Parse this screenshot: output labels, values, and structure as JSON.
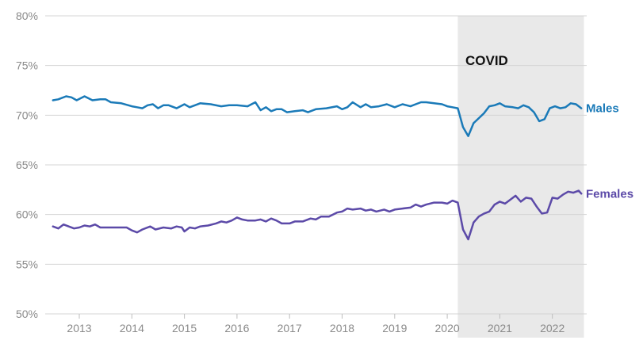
{
  "chart_data": {
    "type": "line",
    "title": "",
    "xlabel": "",
    "ylabel": "",
    "x_unit": "year (decimal)",
    "ylim": [
      50,
      80
    ],
    "xlim": [
      2012.5,
      2022.6
    ],
    "y_ticks": [
      50,
      55,
      60,
      65,
      70,
      75,
      80
    ],
    "y_tick_labels": [
      "50%",
      "55%",
      "60%",
      "65%",
      "70%",
      "75%",
      "80%"
    ],
    "x_ticks": [
      2013,
      2014,
      2015,
      2016,
      2017,
      2018,
      2019,
      2020,
      2021,
      2022
    ],
    "x_tick_labels": [
      "2013",
      "2014",
      "2015",
      "2016",
      "2017",
      "2018",
      "2019",
      "2020",
      "2021",
      "2022"
    ],
    "grid": "horizontal",
    "legend": "inline labels at right end of lines",
    "shaded_region": {
      "label": "COVID",
      "x_start": 2020.2,
      "x_end": 2022.6,
      "color": "#e9e9e9"
    },
    "series": [
      {
        "name": "Males",
        "color": "#1a7ab8",
        "points": [
          [
            2012.5,
            71.5
          ],
          [
            2012.6,
            71.6
          ],
          [
            2012.75,
            71.9
          ],
          [
            2012.85,
            71.8
          ],
          [
            2012.95,
            71.5
          ],
          [
            2013.1,
            71.9
          ],
          [
            2013.25,
            71.5
          ],
          [
            2013.4,
            71.6
          ],
          [
            2013.5,
            71.6
          ],
          [
            2013.6,
            71.3
          ],
          [
            2013.8,
            71.2
          ],
          [
            2014.0,
            70.9
          ],
          [
            2014.1,
            70.8
          ],
          [
            2014.2,
            70.7
          ],
          [
            2014.3,
            71.0
          ],
          [
            2014.4,
            71.1
          ],
          [
            2014.5,
            70.7
          ],
          [
            2014.6,
            71.0
          ],
          [
            2014.7,
            71.0
          ],
          [
            2014.85,
            70.7
          ],
          [
            2015.0,
            71.1
          ],
          [
            2015.1,
            70.8
          ],
          [
            2015.2,
            71.0
          ],
          [
            2015.3,
            71.2
          ],
          [
            2015.5,
            71.1
          ],
          [
            2015.7,
            70.9
          ],
          [
            2015.85,
            71.0
          ],
          [
            2016.0,
            71.0
          ],
          [
            2016.2,
            70.9
          ],
          [
            2016.35,
            71.3
          ],
          [
            2016.45,
            70.5
          ],
          [
            2016.55,
            70.8
          ],
          [
            2016.65,
            70.4
          ],
          [
            2016.75,
            70.6
          ],
          [
            2016.85,
            70.6
          ],
          [
            2016.95,
            70.3
          ],
          [
            2017.1,
            70.4
          ],
          [
            2017.25,
            70.5
          ],
          [
            2017.35,
            70.3
          ],
          [
            2017.5,
            70.6
          ],
          [
            2017.7,
            70.7
          ],
          [
            2017.9,
            70.9
          ],
          [
            2018.0,
            70.6
          ],
          [
            2018.1,
            70.8
          ],
          [
            2018.2,
            71.3
          ],
          [
            2018.35,
            70.8
          ],
          [
            2018.45,
            71.1
          ],
          [
            2018.55,
            70.8
          ],
          [
            2018.7,
            70.9
          ],
          [
            2018.85,
            71.1
          ],
          [
            2019.0,
            70.8
          ],
          [
            2019.15,
            71.1
          ],
          [
            2019.3,
            70.9
          ],
          [
            2019.4,
            71.1
          ],
          [
            2019.5,
            71.3
          ],
          [
            2019.6,
            71.3
          ],
          [
            2019.75,
            71.2
          ],
          [
            2019.9,
            71.1
          ],
          [
            2020.0,
            70.9
          ],
          [
            2020.1,
            70.8
          ],
          [
            2020.2,
            70.7
          ],
          [
            2020.3,
            68.8
          ],
          [
            2020.4,
            67.9
          ],
          [
            2020.5,
            69.2
          ],
          [
            2020.6,
            69.7
          ],
          [
            2020.7,
            70.2
          ],
          [
            2020.8,
            70.9
          ],
          [
            2020.9,
            71.0
          ],
          [
            2021.0,
            71.2
          ],
          [
            2021.1,
            70.9
          ],
          [
            2021.25,
            70.8
          ],
          [
            2021.35,
            70.7
          ],
          [
            2021.45,
            71.0
          ],
          [
            2021.55,
            70.8
          ],
          [
            2021.65,
            70.3
          ],
          [
            2021.75,
            69.4
          ],
          [
            2021.85,
            69.6
          ],
          [
            2021.95,
            70.7
          ],
          [
            2022.05,
            70.9
          ],
          [
            2022.15,
            70.7
          ],
          [
            2022.25,
            70.8
          ],
          [
            2022.35,
            71.2
          ],
          [
            2022.45,
            71.1
          ],
          [
            2022.55,
            70.7
          ]
        ]
      },
      {
        "name": "Females",
        "color": "#5c4aa8",
        "points": [
          [
            2012.5,
            58.8
          ],
          [
            2012.6,
            58.6
          ],
          [
            2012.7,
            59.0
          ],
          [
            2012.8,
            58.8
          ],
          [
            2012.9,
            58.6
          ],
          [
            2013.0,
            58.7
          ],
          [
            2013.1,
            58.9
          ],
          [
            2013.2,
            58.8
          ],
          [
            2013.3,
            59.0
          ],
          [
            2013.4,
            58.7
          ],
          [
            2013.6,
            58.7
          ],
          [
            2013.9,
            58.7
          ],
          [
            2014.0,
            58.4
          ],
          [
            2014.1,
            58.2
          ],
          [
            2014.2,
            58.5
          ],
          [
            2014.35,
            58.8
          ],
          [
            2014.45,
            58.5
          ],
          [
            2014.6,
            58.7
          ],
          [
            2014.75,
            58.6
          ],
          [
            2014.85,
            58.8
          ],
          [
            2014.95,
            58.7
          ],
          [
            2015.0,
            58.3
          ],
          [
            2015.1,
            58.7
          ],
          [
            2015.2,
            58.6
          ],
          [
            2015.3,
            58.8
          ],
          [
            2015.45,
            58.9
          ],
          [
            2015.6,
            59.1
          ],
          [
            2015.7,
            59.3
          ],
          [
            2015.8,
            59.2
          ],
          [
            2015.9,
            59.4
          ],
          [
            2016.0,
            59.7
          ],
          [
            2016.1,
            59.5
          ],
          [
            2016.2,
            59.4
          ],
          [
            2016.35,
            59.4
          ],
          [
            2016.45,
            59.5
          ],
          [
            2016.55,
            59.3
          ],
          [
            2016.65,
            59.6
          ],
          [
            2016.75,
            59.4
          ],
          [
            2016.85,
            59.1
          ],
          [
            2017.0,
            59.1
          ],
          [
            2017.1,
            59.3
          ],
          [
            2017.25,
            59.3
          ],
          [
            2017.4,
            59.6
          ],
          [
            2017.5,
            59.5
          ],
          [
            2017.6,
            59.8
          ],
          [
            2017.75,
            59.8
          ],
          [
            2017.9,
            60.2
          ],
          [
            2018.0,
            60.3
          ],
          [
            2018.1,
            60.6
          ],
          [
            2018.2,
            60.5
          ],
          [
            2018.35,
            60.6
          ],
          [
            2018.45,
            60.4
          ],
          [
            2018.55,
            60.5
          ],
          [
            2018.65,
            60.3
          ],
          [
            2018.8,
            60.5
          ],
          [
            2018.9,
            60.3
          ],
          [
            2019.0,
            60.5
          ],
          [
            2019.15,
            60.6
          ],
          [
            2019.3,
            60.7
          ],
          [
            2019.4,
            61.0
          ],
          [
            2019.5,
            60.8
          ],
          [
            2019.6,
            61.0
          ],
          [
            2019.75,
            61.2
          ],
          [
            2019.9,
            61.2
          ],
          [
            2020.0,
            61.1
          ],
          [
            2020.1,
            61.4
          ],
          [
            2020.2,
            61.2
          ],
          [
            2020.3,
            58.5
          ],
          [
            2020.4,
            57.5
          ],
          [
            2020.5,
            59.2
          ],
          [
            2020.6,
            59.8
          ],
          [
            2020.7,
            60.1
          ],
          [
            2020.8,
            60.3
          ],
          [
            2020.9,
            61.0
          ],
          [
            2021.0,
            61.3
          ],
          [
            2021.1,
            61.1
          ],
          [
            2021.2,
            61.5
          ],
          [
            2021.3,
            61.9
          ],
          [
            2021.4,
            61.3
          ],
          [
            2021.5,
            61.7
          ],
          [
            2021.6,
            61.6
          ],
          [
            2021.7,
            60.8
          ],
          [
            2021.8,
            60.1
          ],
          [
            2021.9,
            60.2
          ],
          [
            2022.0,
            61.7
          ],
          [
            2022.1,
            61.6
          ],
          [
            2022.2,
            62.0
          ],
          [
            2022.3,
            62.3
          ],
          [
            2022.4,
            62.2
          ],
          [
            2022.5,
            62.4
          ],
          [
            2022.55,
            62.1
          ]
        ]
      }
    ]
  }
}
